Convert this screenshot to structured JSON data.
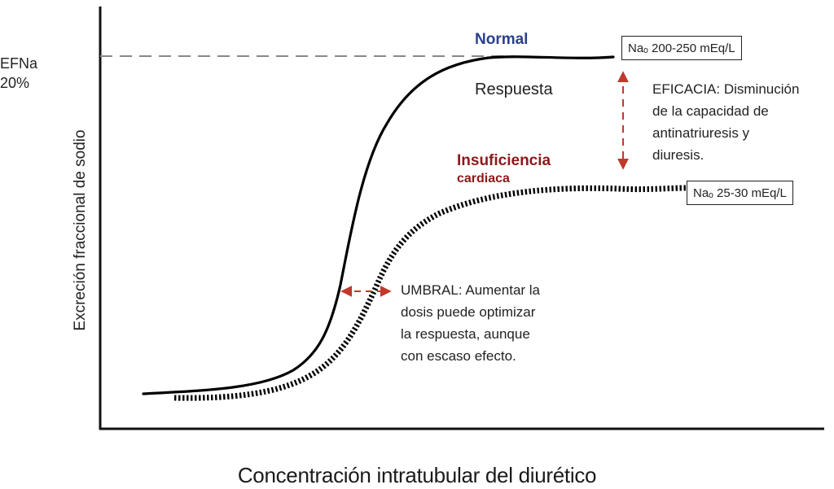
{
  "y_axis": {
    "marker_line1": "EFNa",
    "marker_line2": "20%",
    "label": "Excreción fraccional de sodio"
  },
  "x_axis": {
    "label": "Concentración intratubular del diurético"
  },
  "curves": {
    "normal": {
      "label": "Normal",
      "response_label": "Respuesta",
      "plateau_box": "Naₒ  200-250 mEq/L",
      "color": "#000000"
    },
    "heart_failure": {
      "label_line1": "Insuficiencia",
      "label_line2": "cardiaca",
      "plateau_box": "Naₒ  25-30 mEq/L",
      "color": "#000000"
    }
  },
  "colors": {
    "normal_label": "#2a3f8f",
    "heart_failure_label": "#8b1a1a",
    "arrows": "#c0392b",
    "reference_line": "#888888"
  },
  "annotations": {
    "eficacia": [
      "EFICACIA: Disminución",
      "de la capacidad de",
      "antinatriuresis y",
      "diuresis."
    ],
    "umbral": [
      "UMBRAL: Aumentar la",
      "dosis puede optimizar",
      "la respuesta, aunque",
      "con escaso efecto."
    ]
  }
}
